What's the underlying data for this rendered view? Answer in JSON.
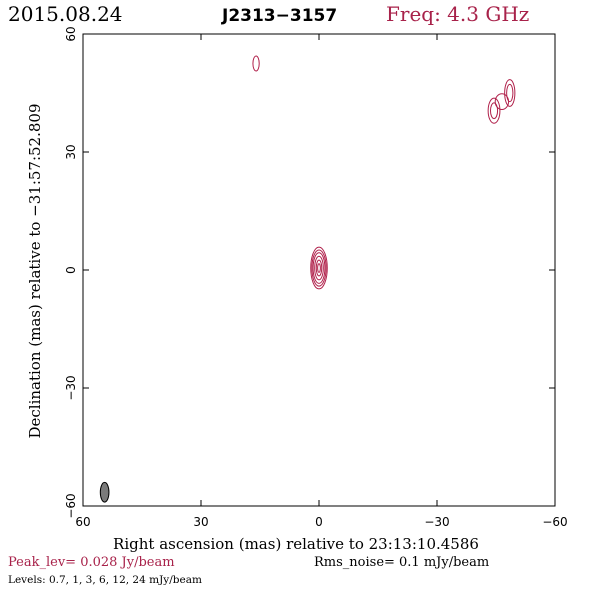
{
  "header": {
    "date": "2015.08.24",
    "source": "J2313−3157",
    "freq": "Freq: 4.3 GHz"
  },
  "footer": {
    "peak": "Peak_lev=  0.028 Jy/beam",
    "rms": "Rms_noise=   0.1 mJy/beam",
    "levels": "Levels: 0.7,    1,    3,    6,   12,   24 mJy/beam"
  },
  "colors": {
    "contour": "#b0204a",
    "accent": "#a8224a",
    "beam": "#7a7a7a"
  },
  "chart_data": {
    "type": "contour",
    "xlabel": "Right ascension (mas) relative to 23:13:10.4586",
    "ylabel": "Declination (mas) relative to −31:57:52.809",
    "xlim": [
      60,
      -60
    ],
    "ylim": [
      -60,
      60
    ],
    "x_ticks": [
      60,
      30,
      0,
      -30,
      -60
    ],
    "y_ticks": [
      60,
      30,
      0,
      -30,
      -60
    ],
    "x_tick_labels": [
      "60",
      "30",
      "0",
      "−30",
      "−60"
    ],
    "y_tick_labels": [
      "60",
      "30",
      "0",
      "−30",
      "−60"
    ],
    "contour_levels_mJy": [
      0.7,
      1,
      3,
      6,
      12,
      24
    ],
    "beam": {
      "x": 54.5,
      "y": -56.5,
      "major": 2.5,
      "minor": 1.1,
      "pa": 0
    },
    "components": [
      {
        "name": "core",
        "x": 0,
        "y": 0.5,
        "contours": [
          {
            "rx": 2.1,
            "ry": 5.3
          },
          {
            "rx": 1.8,
            "ry": 4.6
          },
          {
            "rx": 1.5,
            "ry": 3.9
          },
          {
            "rx": 1.1,
            "ry": 3.0
          },
          {
            "rx": 0.7,
            "ry": 2.0
          },
          {
            "rx": 0.35,
            "ry": 1.1
          }
        ]
      },
      {
        "name": "north-blob",
        "x": 16,
        "y": 52.5,
        "contours": [
          {
            "rx": 0.8,
            "ry": 1.9
          }
        ]
      },
      {
        "name": "ne-blob-a",
        "x": -44.5,
        "y": 40.5,
        "contours": [
          {
            "rx": 1.5,
            "ry": 3.2
          },
          {
            "rx": 0.9,
            "ry": 2.0
          }
        ]
      },
      {
        "name": "ne-blob-b",
        "x": -48.5,
        "y": 45,
        "contours": [
          {
            "rx": 1.3,
            "ry": 3.4
          },
          {
            "rx": 0.8,
            "ry": 2.2
          }
        ]
      },
      {
        "name": "ne-blob-c",
        "x": -46.5,
        "y": 42.8,
        "contours": [
          {
            "rx": 1.7,
            "ry": 2.0
          }
        ]
      }
    ]
  }
}
